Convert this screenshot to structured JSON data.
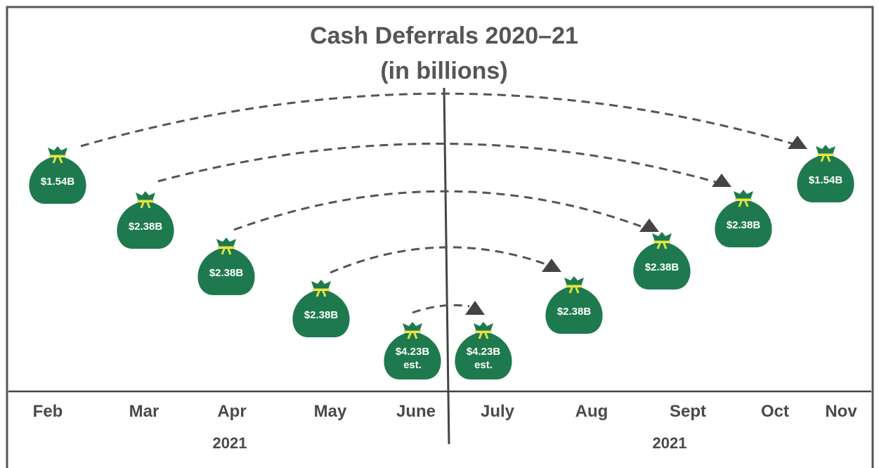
{
  "title": "Cash Deferrals 2020–21",
  "subtitle": "(in billions)",
  "months": [
    "Feb",
    "Mar",
    "Apr",
    "May",
    "June",
    "July",
    "Aug",
    "Sept",
    "Oct",
    "Nov"
  ],
  "years": [
    "2021",
    "2021"
  ],
  "bags": [
    {
      "label": "$1.54B"
    },
    {
      "label": "$2.38B"
    },
    {
      "label": "$2.38B"
    },
    {
      "label": "$2.38B"
    },
    {
      "label": "$4.23B",
      "note": "est."
    },
    {
      "label": "$4.23B",
      "note": "est."
    },
    {
      "label": "$2.38B"
    },
    {
      "label": "$2.38B"
    },
    {
      "label": "$2.38B"
    },
    {
      "label": "$1.54B"
    }
  ]
}
